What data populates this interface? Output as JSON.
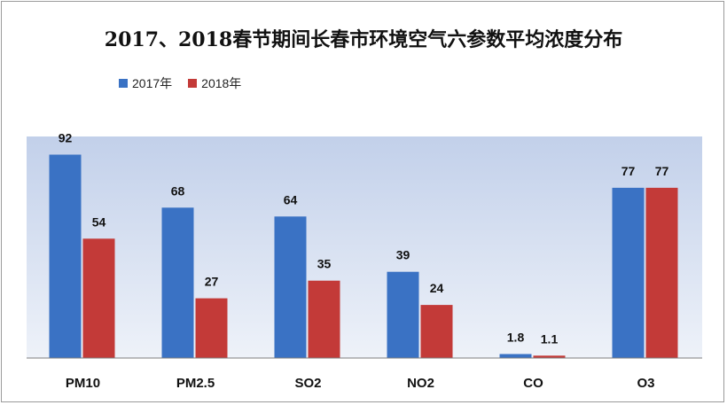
{
  "chart_data": {
    "type": "bar",
    "title": "2017、2018春节期间长春市环境空气六参数平均浓度分布",
    "categories": [
      "PM10",
      "PM2.5",
      "SO2",
      "NO2",
      "CO",
      "O3"
    ],
    "series": [
      {
        "name": "2017年",
        "color": "#3a72c4",
        "values": [
          92,
          68,
          64,
          39,
          1.8,
          77
        ]
      },
      {
        "name": "2018年",
        "color": "#c33a38",
        "values": [
          54,
          27,
          35,
          24,
          1.1,
          77
        ]
      }
    ],
    "ylim": [
      0,
      100
    ],
    "grid": false,
    "legend_position": "top-left",
    "plot_background": "#c9d5ea",
    "xlabel": "",
    "ylabel": ""
  }
}
